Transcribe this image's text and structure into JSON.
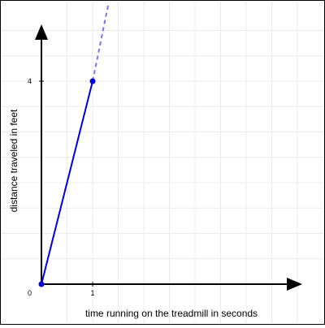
{
  "chart_data": {
    "type": "line",
    "xlabel": "time running on the treadmill in seconds",
    "ylabel": "distance traveled in feet",
    "origin_label": "0",
    "xticks": [
      {
        "value": 1,
        "label": "1"
      }
    ],
    "yticks": [
      {
        "value": 4,
        "label": "4"
      }
    ],
    "xlim": [
      0,
      5
    ],
    "ylim": [
      0,
      5
    ],
    "grid": true,
    "series": [
      {
        "x": [
          0,
          1
        ],
        "y": [
          0,
          4
        ],
        "color": "#0000dd",
        "markers": true
      }
    ],
    "extension": {
      "x": [
        1,
        1.31
      ],
      "y": [
        4,
        5.53
      ],
      "style": "dashed",
      "color": "#7777ee"
    },
    "colors": {
      "axis": "#000000",
      "grid": "#ececec",
      "line": "#0000dd",
      "dash": "#7777ee"
    }
  }
}
